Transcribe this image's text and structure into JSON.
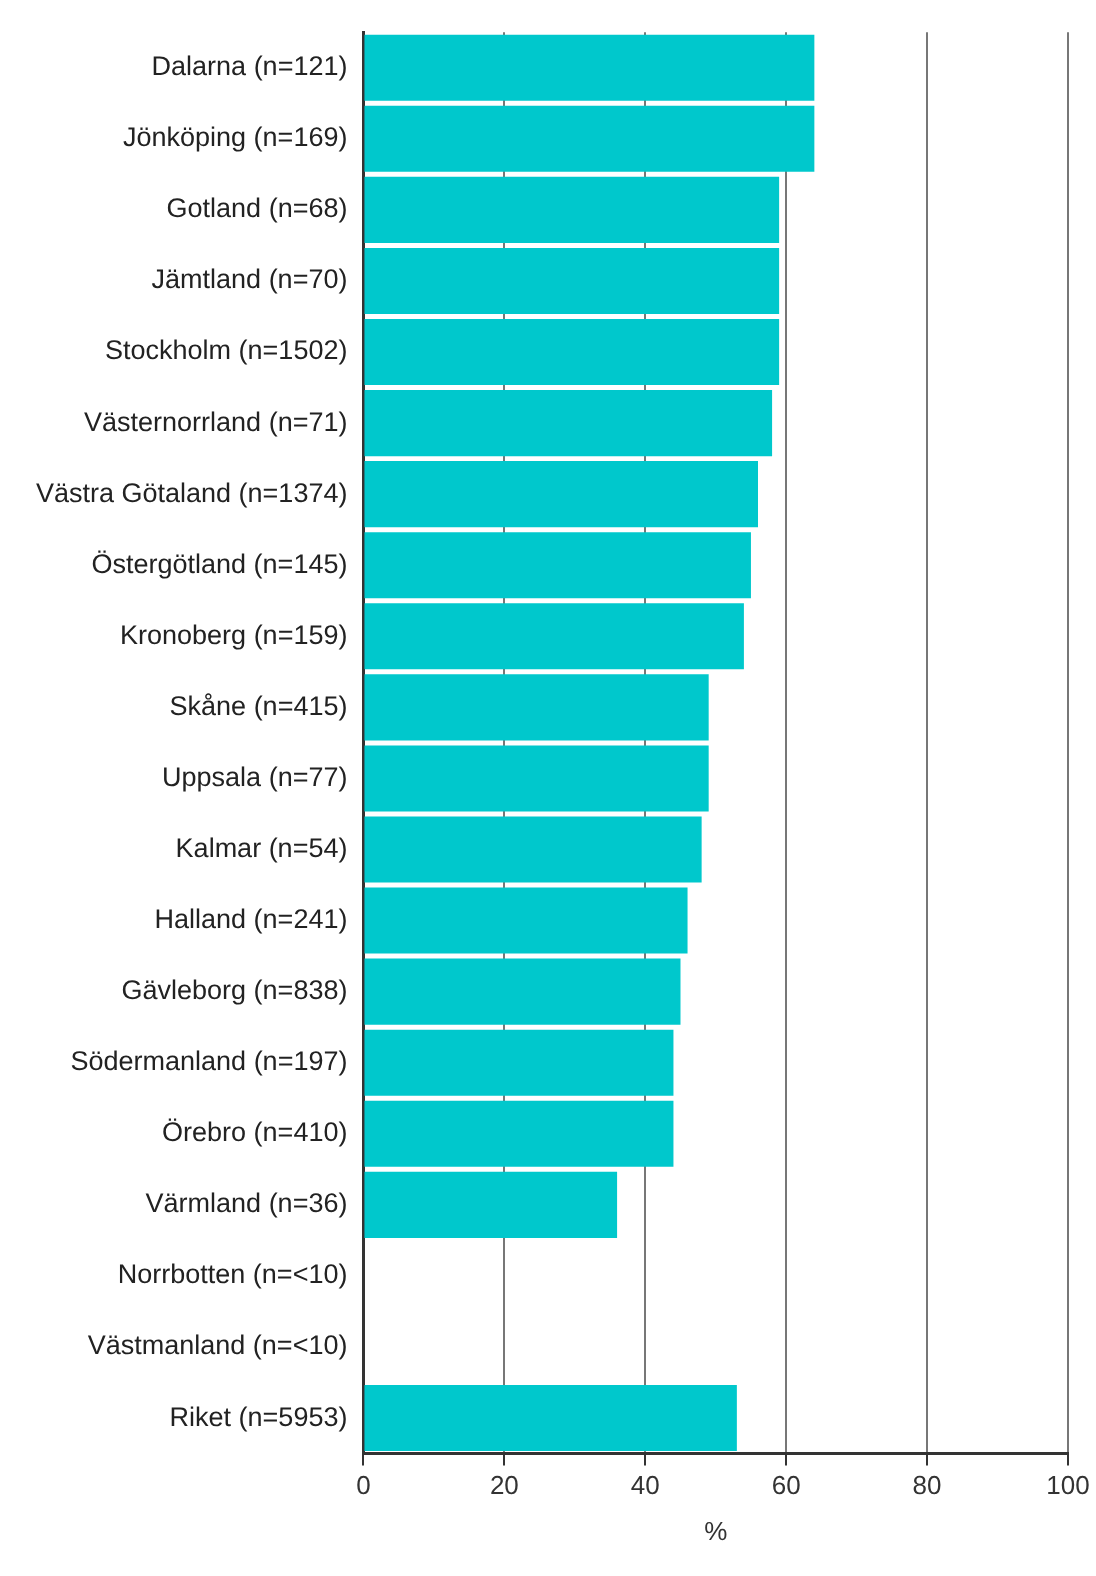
{
  "chart_data": {
    "type": "bar",
    "orientation": "horizontal",
    "xlabel": "%",
    "categories": [
      "Dalarna (n=121)",
      "Jönköping (n=169)",
      "Gotland (n=68)",
      "Jämtland (n=70)",
      "Stockholm (n=1502)",
      "Västernorrland (n=71)",
      "Västra Götaland (n=1374)",
      "Östergötland (n=145)",
      "Kronoberg (n=159)",
      "Skåne (n=415)",
      "Uppsala (n=77)",
      "Kalmar (n=54)",
      "Halland (n=241)",
      "Gävleborg (n=838)",
      "Södermanland (n=197)",
      "Örebro (n=410)",
      "Värmland (n=36)",
      "Norrbotten (n=<10)",
      "Västmanland (n=<10)",
      "Riket (n=5953)"
    ],
    "values": [
      64,
      64,
      59,
      59,
      59,
      58,
      56,
      55,
      54,
      49,
      49,
      48,
      46,
      45,
      44,
      44,
      36,
      null,
      null,
      53
    ],
    "color": "#00c8cc",
    "xlim": [
      0,
      100
    ],
    "xticks": [
      0,
      20,
      40,
      60,
      80,
      100
    ],
    "grid": "x",
    "legend": false
  }
}
